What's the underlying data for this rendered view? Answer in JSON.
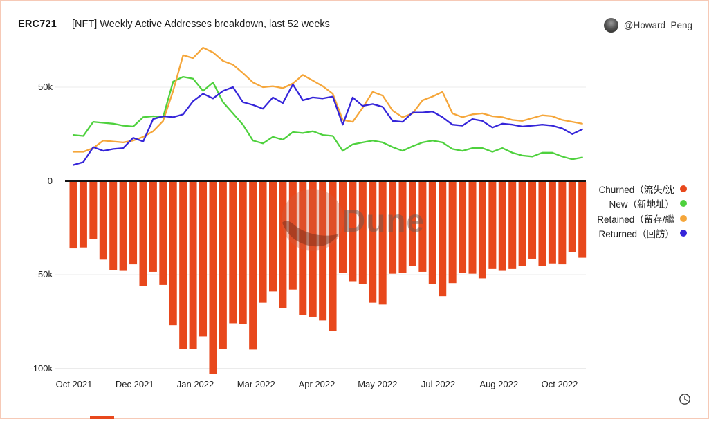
{
  "header": {
    "title": "ERC721",
    "subtitle": "[NFT] Weekly Active Addresses breakdown, last 52 weeks",
    "author": "@Howard_Peng"
  },
  "watermark": {
    "text": "Dune",
    "logo_icon": "dune-logo-icon"
  },
  "icons": {
    "clock": "clock-icon",
    "avatar": "user-avatar"
  },
  "chart_data": {
    "type": "combo: bar (below zero) + 3 lines (above zero)",
    "title": "[NFT] Weekly Active Addresses breakdown, last 52 weeks",
    "x_range": "52 weekly points, Oct 2021 – Oct 2022",
    "unit": "active addresses, thousands (k)",
    "x_tick_labels": [
      "Oct 2021",
      "Dec 2021",
      "Jan 2022",
      "Mar 2022",
      "Apr 2022",
      "May 2022",
      "Jul 2022",
      "Aug 2022",
      "Oct 2022"
    ],
    "y_tick_labels": [
      "50k",
      "0",
      "-50k",
      "-100k"
    ],
    "y_tick_values": [
      50,
      0,
      -50,
      -100
    ],
    "ylim": [
      -110,
      75
    ],
    "grid": "horizontal gridlines only, black zero baseline",
    "legend_position": "right",
    "series": [
      {
        "name": "Churned（流失/沈",
        "type": "bar",
        "color": "#e8481c",
        "values": [
          -36,
          -35.5,
          -31,
          -42,
          -47.5,
          -48,
          -44.5,
          -56,
          -48.5,
          -55.5,
          -77,
          -89.5,
          -89.5,
          -83,
          -103,
          -89.5,
          -76,
          -76.5,
          -90,
          -65,
          -59,
          -68,
          -58,
          -71.5,
          -72.5,
          -74.5,
          -80,
          -49,
          -53.5,
          -55,
          -65,
          -66,
          -49.5,
          -49,
          -45.5,
          -48.5,
          -55,
          -61.5,
          -54.5,
          -49,
          -49.5,
          -52,
          -47,
          -48,
          -47,
          -45.5,
          -41.5,
          -45.5,
          -44,
          -44.5,
          -38,
          -41
        ]
      },
      {
        "name": "New（新地址）",
        "type": "line",
        "color": "#4ed13d",
        "values": [
          24.5,
          24,
          31.5,
          31,
          30.5,
          29.5,
          29,
          34,
          34.5,
          34,
          53,
          55.5,
          54.5,
          48,
          52.5,
          42,
          36,
          30,
          21.5,
          20,
          23.5,
          22,
          26,
          25.5,
          26.5,
          24.5,
          24,
          16,
          19.5,
          20.5,
          21.5,
          20.5,
          18,
          16,
          18.5,
          20.5,
          21.5,
          20.5,
          17,
          16,
          17.5,
          17.5,
          15.5,
          17.5,
          15,
          13.5,
          13,
          15,
          15,
          13,
          11.5,
          12.5
        ]
      },
      {
        "name": "Retained（留存/繼",
        "type": "line",
        "color": "#f5a63a",
        "values": [
          15.5,
          15.5,
          17.5,
          21.5,
          21,
          20.5,
          21.5,
          23.5,
          26.5,
          32,
          48,
          67,
          65.5,
          71,
          68.5,
          64,
          62,
          57.5,
          52.5,
          50,
          50.5,
          49.5,
          52,
          56.5,
          53.5,
          50.5,
          46.5,
          32.5,
          31.5,
          39,
          47.5,
          45.5,
          37.5,
          34,
          36,
          43,
          45,
          47.5,
          36,
          34,
          35.5,
          36,
          34.5,
          34,
          32.5,
          32,
          33.5,
          35,
          34.5,
          32.5,
          31.5,
          30.5
        ]
      },
      {
        "name": "Returned（回訪）",
        "type": "line",
        "color": "#3525d9",
        "values": [
          8.5,
          10,
          18,
          16,
          17,
          17.5,
          23,
          21,
          33,
          34.5,
          34,
          35.5,
          42.5,
          46.5,
          44,
          48,
          50,
          42,
          40.5,
          38.5,
          44.5,
          41.5,
          51.5,
          43,
          44.5,
          44,
          45,
          30,
          44.5,
          40,
          41,
          39.5,
          32,
          31.5,
          36.5,
          36.5,
          37,
          34,
          30,
          29.5,
          33,
          32,
          28.5,
          30.5,
          30,
          29,
          29.5,
          30,
          29.5,
          28,
          25,
          27.5
        ]
      }
    ]
  }
}
